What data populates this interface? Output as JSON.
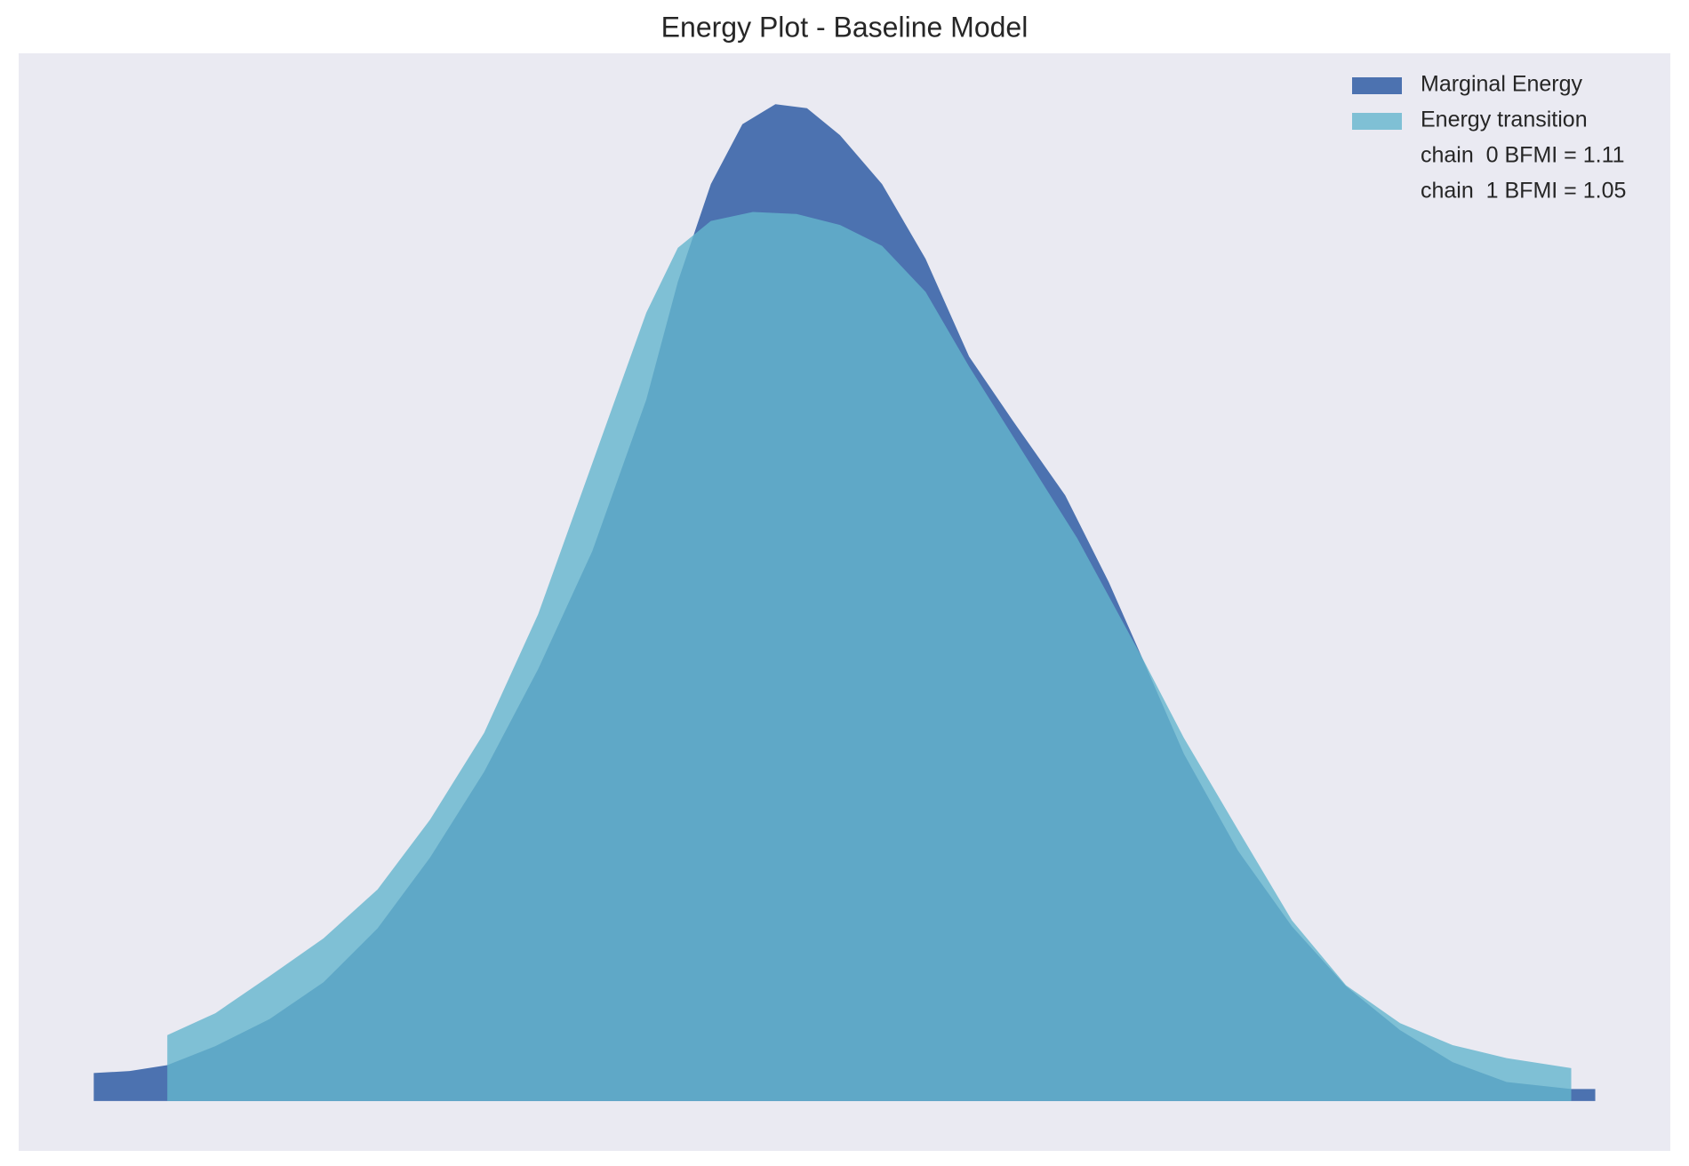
{
  "chart_data": {
    "type": "density",
    "title": "Energy Plot - Baseline Model",
    "xlim": [
      -5,
      105
    ],
    "ylim": [
      -0.05,
      1.05
    ],
    "series": [
      {
        "name": "Marginal Energy",
        "color": "#4c72b0",
        "alpha": 1,
        "x": [
          0,
          2.4,
          4.9,
          8.1,
          11.7,
          15.3,
          18.9,
          22.4,
          26.0,
          29.6,
          33.2,
          36.8,
          38.9,
          41.1,
          43.2,
          45.4,
          47.5,
          49.7,
          52.5,
          55.4,
          58.3,
          61.2,
          64.7,
          67.6,
          69.8,
          72.6,
          76.2,
          79.8,
          83.4,
          87.0,
          90.5,
          94.1,
          98.4,
          100
        ],
        "values": [
          0.028,
          0.03,
          0.036,
          0.055,
          0.082,
          0.119,
          0.173,
          0.244,
          0.33,
          0.433,
          0.551,
          0.703,
          0.821,
          0.919,
          0.979,
          0.999,
          0.995,
          0.968,
          0.919,
          0.844,
          0.746,
          0.682,
          0.607,
          0.52,
          0.445,
          0.348,
          0.251,
          0.175,
          0.115,
          0.071,
          0.039,
          0.019,
          0.012,
          0.012
        ]
      },
      {
        "name": "Energy transition",
        "color": "#64b5cd",
        "alpha": 0.8,
        "x": [
          4.9,
          8.1,
          11.7,
          15.3,
          18.9,
          22.4,
          26.0,
          29.6,
          33.2,
          36.8,
          38.9,
          41.1,
          43.9,
          46.8,
          49.7,
          52.5,
          55.4,
          58.3,
          61.9,
          65.5,
          69.8,
          72.6,
          76.2,
          79.8,
          83.4,
          87.0,
          90.5,
          94.1,
          98.4
        ],
        "values": [
          0.066,
          0.088,
          0.125,
          0.163,
          0.212,
          0.282,
          0.369,
          0.488,
          0.639,
          0.79,
          0.855,
          0.882,
          0.891,
          0.889,
          0.878,
          0.857,
          0.811,
          0.736,
          0.65,
          0.564,
          0.445,
          0.364,
          0.272,
          0.181,
          0.116,
          0.078,
          0.056,
          0.043,
          0.033
        ]
      }
    ],
    "annotations": [
      "chain  0 BFMI = 1.11",
      "chain  1 BFMI = 1.05"
    ],
    "legend": "upper right"
  }
}
